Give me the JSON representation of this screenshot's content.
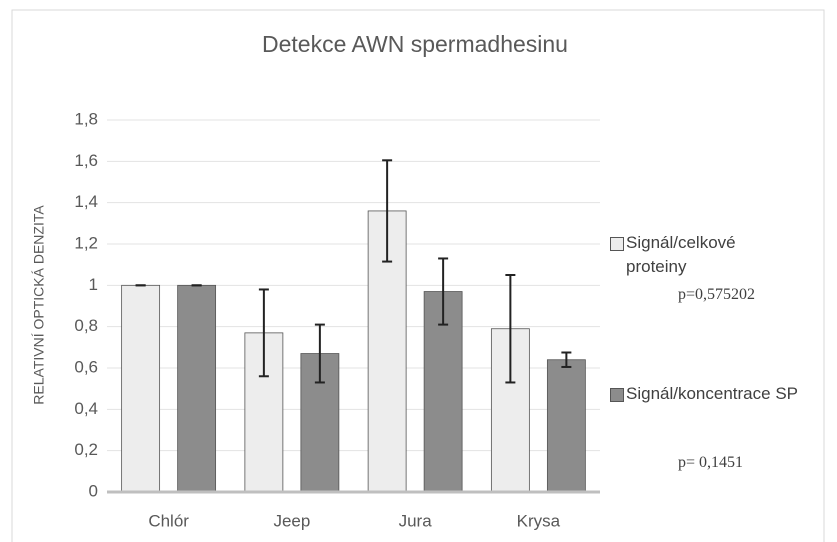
{
  "chart_data": {
    "type": "bar",
    "title": "Detekce AWN spermadhesinu",
    "y_label": "RELATIVNÍ OPTICKÁ DENZITA",
    "categories": [
      "Chlór",
      "Jeep",
      "Jura",
      "Krysa"
    ],
    "series": [
      {
        "name": "Signál/celkové proteiny",
        "color": "#ededed",
        "values": [
          1,
          0.77,
          1.36,
          0.79
        ],
        "errors": [
          0,
          0.21,
          0.245,
          0.26
        ]
      },
      {
        "name": "Signál/koncentrace SP",
        "color": "#8c8c8c",
        "values": [
          1,
          0.67,
          0.97,
          0.64
        ],
        "errors": [
          0,
          0.14,
          0.16,
          0.035
        ]
      }
    ],
    "annotations": [
      "p=0,575202",
      "p= 0,1451"
    ],
    "ylim": [
      0,
      1.8
    ],
    "yticks": [
      0,
      {
        "value": 0.2,
        "label": "0,2"
      },
      {
        "value": 0.4,
        "label": "0,4"
      },
      {
        "value": 0.6,
        "label": "0,6"
      },
      {
        "value": 0.8,
        "label": "0,8"
      },
      1,
      {
        "value": 1.2,
        "label": "1,2"
      },
      {
        "value": 1.4,
        "label": "1,4"
      },
      {
        "value": 1.6,
        "label": "1,6"
      },
      {
        "value": 1.8,
        "label": "1,8"
      }
    ],
    "grid": true,
    "legend": "right"
  }
}
